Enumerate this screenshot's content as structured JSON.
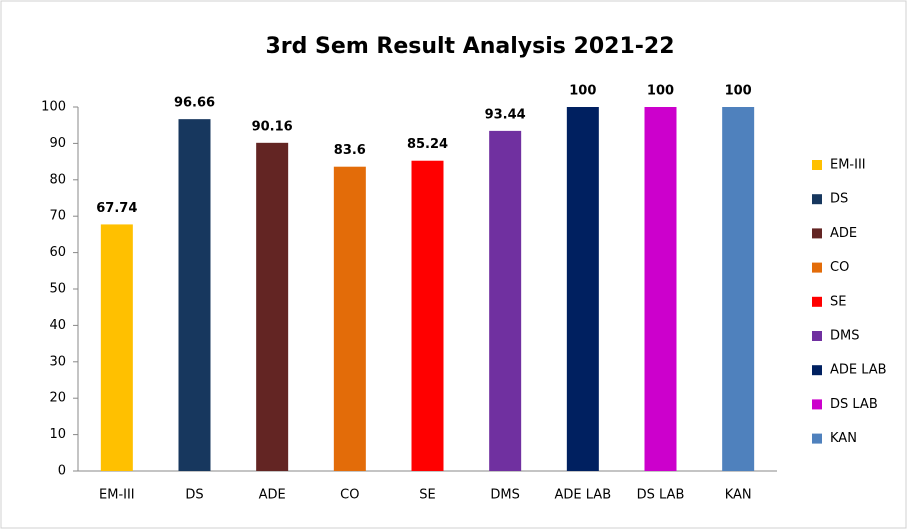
{
  "chart_data": {
    "type": "bar",
    "title": "3rd Sem Result Analysis 2021-22",
    "categories": [
      "EM-III",
      "DS",
      "ADE",
      "CO",
      "SE",
      "DMS",
      "ADE LAB",
      "DS LAB",
      "KAN"
    ],
    "values": [
      67.74,
      96.66,
      90.16,
      83.6,
      85.24,
      93.44,
      100,
      100,
      100
    ],
    "colors": [
      "#ffc000",
      "#17375e",
      "#632523",
      "#e36c09",
      "#ff0000",
      "#7030a0",
      "#002060",
      "#cc00cc",
      "#4f81bd"
    ],
    "ylim": [
      0,
      100
    ],
    "yticks": [
      0,
      10,
      20,
      30,
      40,
      50,
      60,
      70,
      80,
      90,
      100
    ],
    "legend": "right"
  }
}
